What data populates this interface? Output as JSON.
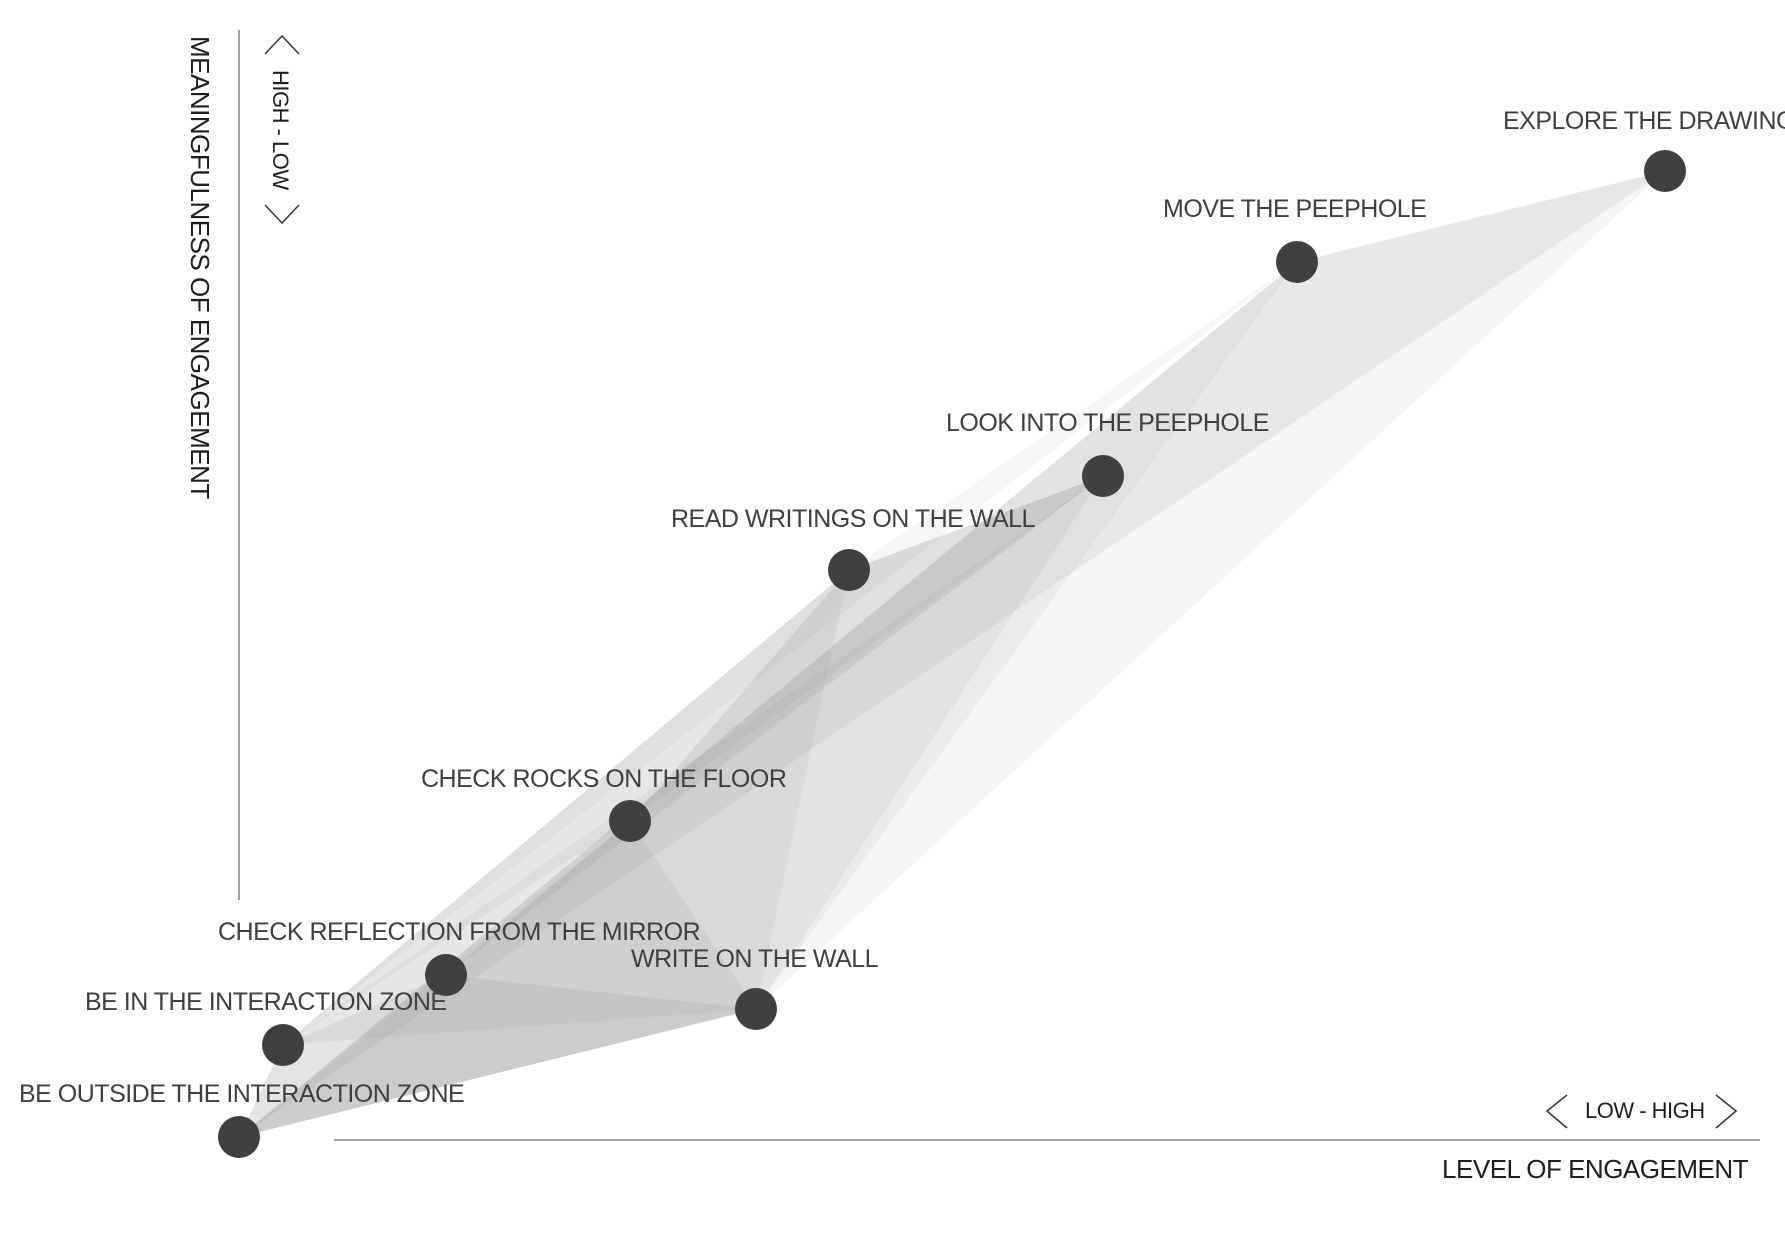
{
  "diagram": {
    "x_axis": {
      "title": "LEVEL OF ENGAGEMENT",
      "range_label": "LOW - HIGH"
    },
    "y_axis": {
      "title": "MEANINGFULNESS OF ENGAGEMENT",
      "range_label": "HIGH - LOW"
    },
    "nodes": [
      {
        "id": "outside",
        "label": "BE OUTSIDE THE INTERACTION ZONE"
      },
      {
        "id": "in-zone",
        "label": "BE IN THE INTERACTION ZONE"
      },
      {
        "id": "mirror",
        "label": "CHECK REFLECTION FROM THE MIRROR"
      },
      {
        "id": "write",
        "label": "WRITE ON THE WALL"
      },
      {
        "id": "rocks",
        "label": "CHECK ROCKS ON THE FLOOR"
      },
      {
        "id": "read",
        "label": "READ WRITINGS ON THE WALL"
      },
      {
        "id": "look",
        "label": "LOOK INTO THE PEEPHOLE"
      },
      {
        "id": "move",
        "label": "MOVE THE PEEPHOLE"
      },
      {
        "id": "explore",
        "label": "EXPLORE THE DRAWING"
      }
    ],
    "colors": {
      "node_fill": "#404040",
      "polygon_fill": "#8c8c8c",
      "text": "#3f3f3f"
    }
  }
}
